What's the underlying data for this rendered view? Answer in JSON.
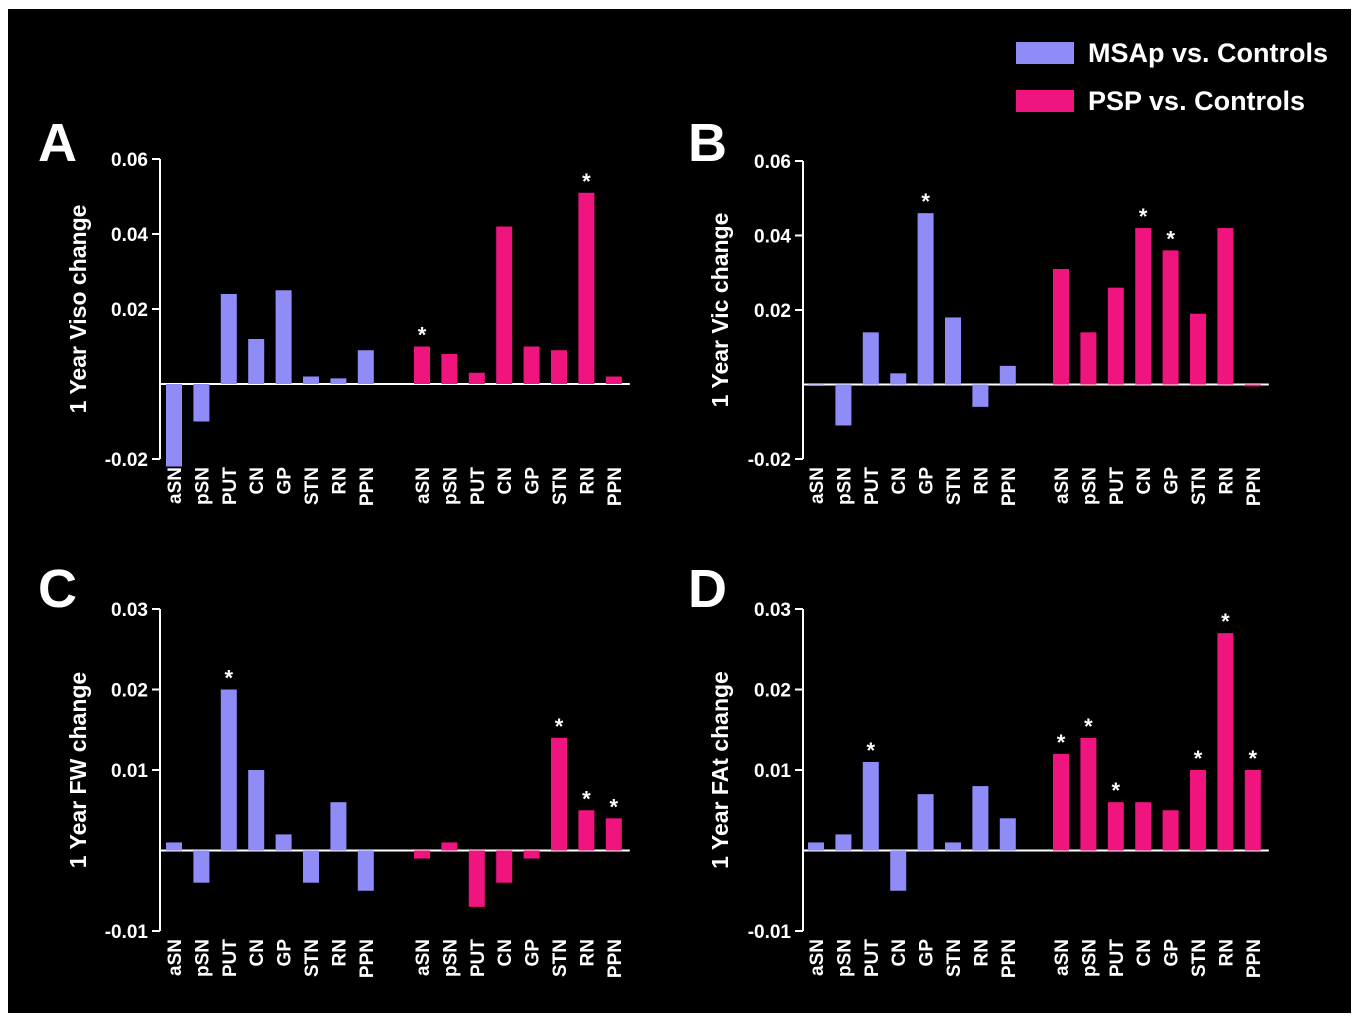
{
  "legend": [
    {
      "label": "MSAp vs. Controls",
      "color": "#8f8cf8"
    },
    {
      "label": "PSP vs. Controls",
      "color": "#f0157e"
    }
  ],
  "chart_data": [
    {
      "panel": "A",
      "type": "bar",
      "ylabel": "1 Year Viso change",
      "ylim": [
        -0.022,
        0.06
      ],
      "yticks": [
        -0.02,
        0.02,
        0.04,
        0.06
      ],
      "ytick_labels": [
        "-0.02",
        "0.02",
        "0.04",
        "0.06"
      ],
      "categories": [
        "aSN",
        "pSN",
        "PUT",
        "CN",
        "GP",
        "STN",
        "RN",
        "PPN"
      ],
      "series": [
        {
          "name": "MSAp vs. Controls",
          "values": [
            -0.022,
            -0.01,
            0.024,
            0.012,
            0.025,
            0.002,
            0.0015,
            0.009
          ],
          "significant": [
            false,
            false,
            false,
            false,
            false,
            false,
            false,
            false
          ]
        },
        {
          "name": "PSP vs. Controls",
          "values": [
            0.01,
            0.008,
            0.003,
            0.042,
            0.01,
            0.009,
            0.051,
            0.002
          ],
          "significant": [
            true,
            false,
            false,
            false,
            false,
            false,
            true,
            false
          ]
        }
      ]
    },
    {
      "panel": "B",
      "type": "bar",
      "ylabel": "1 Year Vic change",
      "ylim": [
        -0.022,
        0.06
      ],
      "yticks": [
        -0.02,
        0.02,
        0.04,
        0.06
      ],
      "ytick_labels": [
        "-0.02",
        "0.02",
        "0.04",
        "0.06"
      ],
      "categories": [
        "aSN",
        "pSN",
        "PUT",
        "CN",
        "GP",
        "STN",
        "RN",
        "PPN"
      ],
      "series": [
        {
          "name": "MSAp vs. Controls",
          "values": [
            0,
            -0.011,
            0.014,
            0.003,
            0.046,
            0.018,
            -0.006,
            0.005
          ],
          "significant": [
            false,
            false,
            false,
            false,
            true,
            false,
            false,
            false
          ]
        },
        {
          "name": "PSP vs. Controls",
          "values": [
            0.031,
            0.014,
            0.026,
            0.042,
            0.036,
            0.019,
            0.042,
            -0.0005
          ],
          "significant": [
            false,
            false,
            false,
            true,
            true,
            false,
            false,
            false
          ]
        }
      ]
    },
    {
      "panel": "C",
      "type": "bar",
      "ylabel": "1 Year FW change",
      "ylim": [
        -0.01,
        0.03
      ],
      "yticks": [
        -0.01,
        0.01,
        0.02,
        0.03
      ],
      "ytick_labels": [
        "-0.01",
        "0.01",
        "0.02",
        "0.03"
      ],
      "categories": [
        "aSN",
        "pSN",
        "PUT",
        "CN",
        "GP",
        "STN",
        "RN",
        "PPN"
      ],
      "series": [
        {
          "name": "MSAp vs. Controls",
          "values": [
            0.001,
            -0.004,
            0.02,
            0.01,
            0.002,
            -0.004,
            0.006,
            -0.005
          ],
          "significant": [
            false,
            false,
            true,
            false,
            false,
            false,
            false,
            false
          ]
        },
        {
          "name": "PSP vs. Controls",
          "values": [
            -0.001,
            0.001,
            -0.007,
            -0.004,
            -0.001,
            0.014,
            0.005,
            0.004
          ],
          "significant": [
            false,
            false,
            false,
            false,
            false,
            true,
            true,
            true
          ]
        }
      ]
    },
    {
      "panel": "D",
      "type": "bar",
      "ylabel": "1 Year FAt change",
      "ylim": [
        -0.01,
        0.03
      ],
      "yticks": [
        -0.01,
        0.01,
        0.02,
        0.03
      ],
      "ytick_labels": [
        "-0.01",
        "0.01",
        "0.02",
        "0.03"
      ],
      "categories": [
        "aSN",
        "pSN",
        "PUT",
        "CN",
        "GP",
        "STN",
        "RN",
        "PPN"
      ],
      "series": [
        {
          "name": "MSAp vs. Controls",
          "values": [
            0.001,
            0.002,
            0.011,
            -0.005,
            0.007,
            0.001,
            0.008,
            0.004
          ],
          "significant": [
            false,
            false,
            true,
            false,
            false,
            false,
            false,
            false
          ]
        },
        {
          "name": "PSP vs. Controls",
          "values": [
            0.012,
            0.014,
            0.006,
            0.006,
            0.005,
            0.01,
            0.027,
            0.01
          ],
          "significant": [
            true,
            true,
            true,
            false,
            false,
            true,
            true,
            true
          ]
        }
      ]
    }
  ],
  "significance_mark": "*"
}
